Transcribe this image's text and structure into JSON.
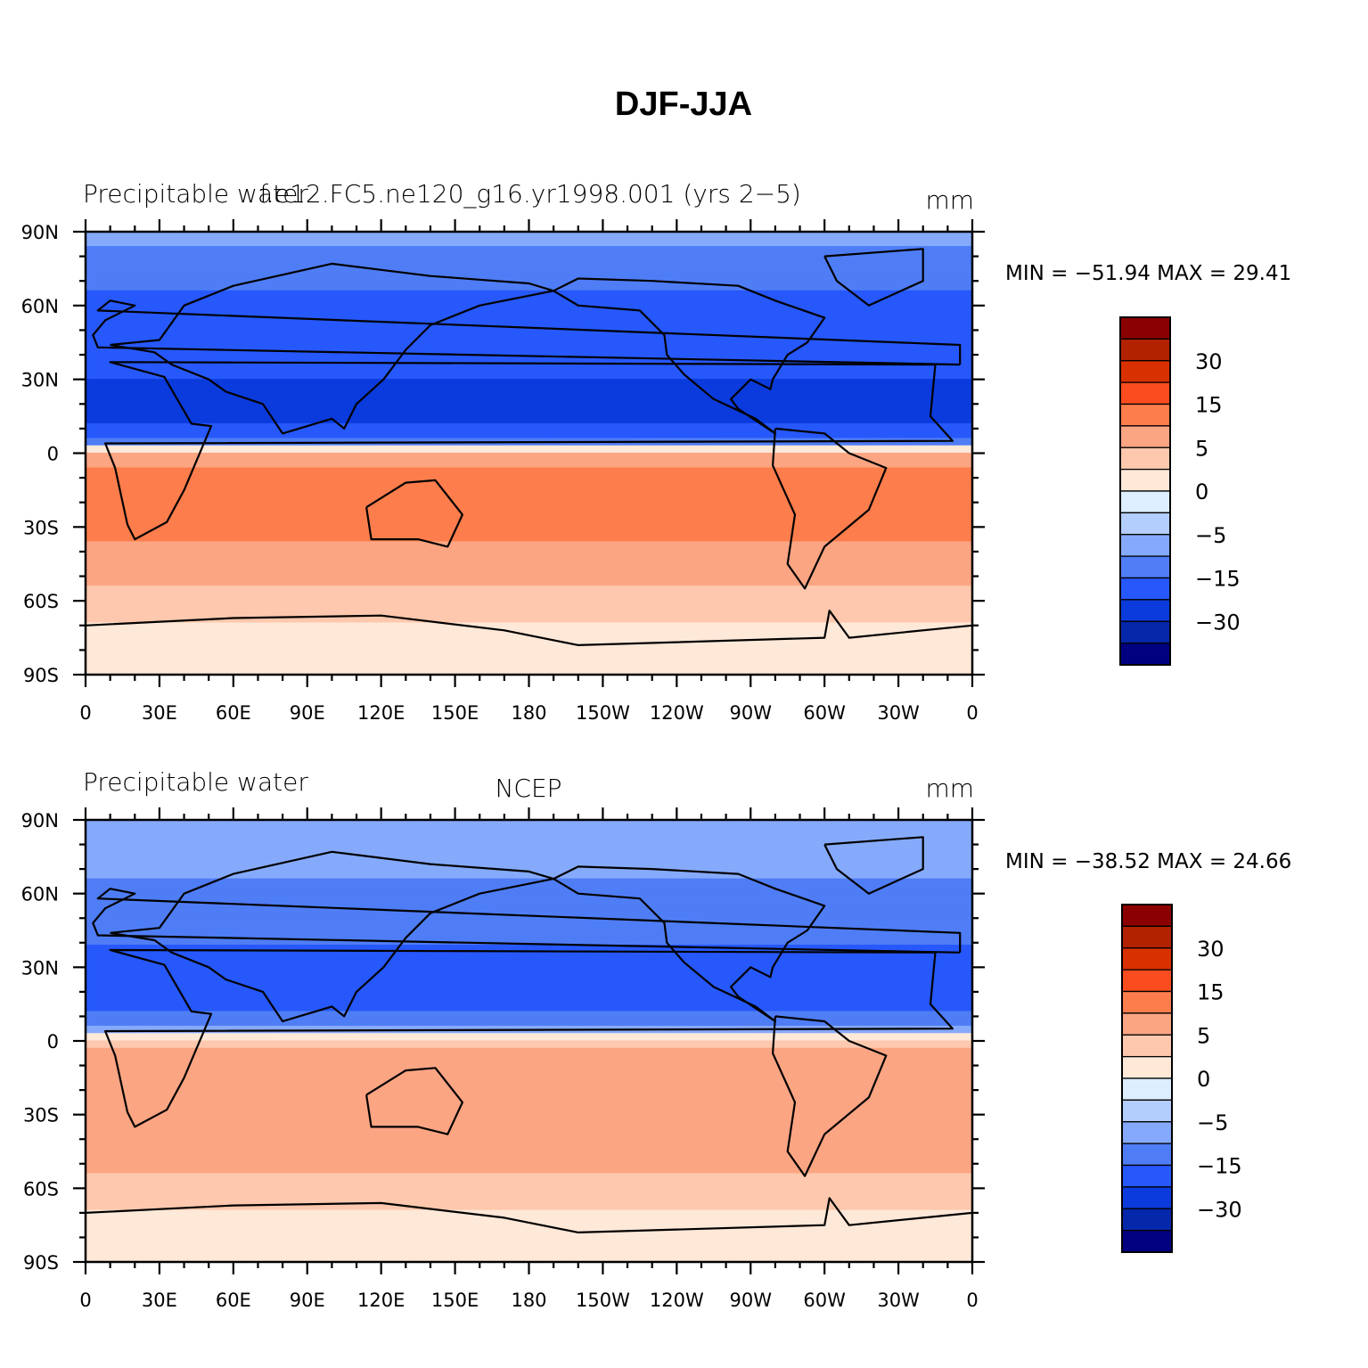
{
  "figure_title": "DJF-JJA",
  "chart_data": [
    {
      "type": "heatmap",
      "title_left": "Precipitable water",
      "title_center": "f.e12.FC5.ne120_g16.yr1998.001 (yrs 2−5)",
      "title_right": "mm",
      "stats": {
        "min_label": "MIN =",
        "min": "−51.94",
        "max_label": "MAX =",
        "max": "29.41"
      },
      "x_ticks": [
        "0",
        "30E",
        "60E",
        "90E",
        "120E",
        "150E",
        "180",
        "150W",
        "120W",
        "90W",
        "60W",
        "30W",
        "0"
      ],
      "y_ticks": [
        "90N",
        "60N",
        "30N",
        "0",
        "30S",
        "60S",
        "90S"
      ],
      "xlim": [
        0,
        360
      ],
      "ylim": [
        -90,
        90
      ],
      "zonal_profile": {
        "lat": [
          90,
          75,
          60,
          45,
          30,
          15,
          5,
          0,
          -15,
          -30,
          -45,
          -60,
          -75,
          -90
        ],
        "values": [
          -8,
          -14,
          -16,
          -18,
          -22,
          -28,
          -12,
          6,
          14,
          12,
          7,
          4,
          1,
          0
        ]
      }
    },
    {
      "type": "heatmap",
      "title_left": "Precipitable water",
      "title_center": "NCEP",
      "title_right": "mm",
      "stats": {
        "min_label": "MIN =",
        "min": "−38.52",
        "max_label": "MAX =",
        "max": "24.66"
      },
      "x_ticks": [
        "0",
        "30E",
        "60E",
        "90E",
        "120E",
        "150E",
        "180",
        "150W",
        "120W",
        "90W",
        "60W",
        "30W",
        "0"
      ],
      "y_ticks": [
        "90N",
        "60N",
        "30N",
        "0",
        "30S",
        "60S",
        "90S"
      ],
      "xlim": [
        0,
        360
      ],
      "ylim": [
        -90,
        90
      ],
      "zonal_profile": {
        "lat": [
          90,
          75,
          60,
          45,
          30,
          15,
          5,
          0,
          -15,
          -30,
          -45,
          -60,
          -75,
          -90
        ],
        "values": [
          -6,
          -9,
          -11,
          -14,
          -17,
          -19,
          -8,
          4,
          10,
          9,
          6,
          4,
          1,
          0
        ]
      }
    }
  ],
  "colorbar": {
    "colors": [
      "#8b0000",
      "#b22200",
      "#d93000",
      "#fa4c1e",
      "#fd7d4c",
      "#fca583",
      "#fdc8ad",
      "#fee8d8",
      "#dceeff",
      "#b3cdfd",
      "#86aafb",
      "#4f7df5",
      "#2658fb",
      "#0b3bdc",
      "#0527aa",
      "#000080"
    ],
    "labels": [
      "30",
      "15",
      "5",
      "0",
      "−5",
      "−15",
      "−30"
    ]
  }
}
